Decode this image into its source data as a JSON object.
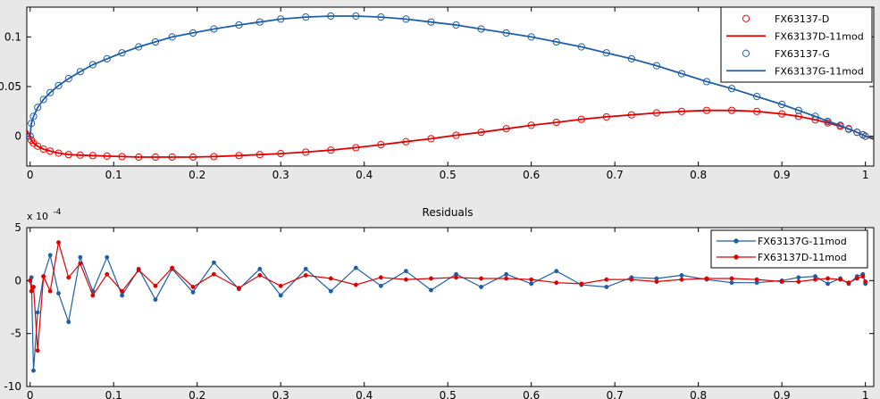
{
  "chart_data": [
    {
      "type": "line",
      "title": "",
      "xlabel": "",
      "ylabel": "",
      "xlim": [
        -0.004,
        1.01
      ],
      "ylim": [
        -0.03,
        0.13
      ],
      "x_ticks": [
        "0",
        "0.1",
        "0.2",
        "0.3",
        "0.4",
        "0.5",
        "0.6",
        "0.7",
        "0.8",
        "0.9",
        "1"
      ],
      "x_tick_values": [
        0,
        0.1,
        0.2,
        0.3,
        0.4,
        0.5,
        0.6,
        0.7,
        0.8,
        0.9,
        1
      ],
      "y_ticks": [
        "0",
        "0.05",
        "0.1"
      ],
      "y_tick_values": [
        0,
        0.05,
        0.1
      ],
      "legend_position": "top-right",
      "series": [
        {
          "name": "FX63137-D",
          "style": "markers",
          "marker": "circle",
          "color": "#ff0000",
          "x": [
            0,
            0.0015,
            0.004,
            0.009,
            0.016,
            0.024,
            0.034,
            0.046,
            0.06,
            0.075,
            0.092,
            0.11,
            0.13,
            0.15,
            0.17,
            0.195,
            0.22,
            0.25,
            0.275,
            0.3,
            0.33,
            0.36,
            0.39,
            0.42,
            0.45,
            0.48,
            0.51,
            0.54,
            0.57,
            0.6,
            0.63,
            0.66,
            0.69,
            0.72,
            0.75,
            0.78,
            0.81,
            0.84,
            0.87,
            0.9,
            0.92,
            0.94,
            0.955,
            0.97,
            0.98,
            0.99,
            0.997,
            1.0
          ],
          "y": [
            0,
            -0.004,
            -0.007,
            -0.01,
            -0.013,
            -0.015,
            -0.017,
            -0.0185,
            -0.019,
            -0.0195,
            -0.02,
            -0.0205,
            -0.021,
            -0.021,
            -0.021,
            -0.021,
            -0.0205,
            -0.0195,
            -0.0185,
            -0.0175,
            -0.016,
            -0.014,
            -0.0115,
            -0.0085,
            -0.0055,
            -0.0025,
            0.001,
            0.004,
            0.0075,
            0.011,
            0.014,
            0.017,
            0.0195,
            0.0215,
            0.0235,
            0.025,
            0.026,
            0.026,
            0.025,
            0.0225,
            0.02,
            0.0165,
            0.0135,
            0.01,
            0.0075,
            0.004,
            0.0015,
            0
          ]
        },
        {
          "name": "FX63137D-11mod",
          "style": "line",
          "color": "#e00000",
          "x": [
            -0.004,
            0,
            0.0015,
            0.004,
            0.009,
            0.016,
            0.024,
            0.034,
            0.046,
            0.06,
            0.075,
            0.092,
            0.11,
            0.13,
            0.15,
            0.17,
            0.195,
            0.22,
            0.25,
            0.275,
            0.3,
            0.33,
            0.36,
            0.39,
            0.42,
            0.45,
            0.48,
            0.51,
            0.54,
            0.57,
            0.6,
            0.63,
            0.66,
            0.69,
            0.72,
            0.75,
            0.78,
            0.81,
            0.84,
            0.87,
            0.9,
            0.92,
            0.94,
            0.955,
            0.97,
            0.98,
            0.99,
            0.997,
            1.0,
            1.01
          ],
          "y": [
            0.006,
            0,
            -0.004,
            -0.007,
            -0.01,
            -0.013,
            -0.015,
            -0.017,
            -0.0185,
            -0.019,
            -0.0195,
            -0.02,
            -0.0205,
            -0.021,
            -0.021,
            -0.021,
            -0.021,
            -0.0205,
            -0.0195,
            -0.0185,
            -0.0175,
            -0.016,
            -0.014,
            -0.0115,
            -0.0085,
            -0.0055,
            -0.0025,
            0.001,
            0.004,
            0.0075,
            0.011,
            0.014,
            0.017,
            0.0195,
            0.0215,
            0.0235,
            0.025,
            0.026,
            0.026,
            0.025,
            0.0225,
            0.02,
            0.0165,
            0.0135,
            0.01,
            0.0075,
            0.004,
            0.0015,
            0,
            -0.003
          ]
        },
        {
          "name": "FX63137-G",
          "style": "markers",
          "marker": "circle",
          "color": "#1f5fa8",
          "x": [
            0,
            0.0015,
            0.004,
            0.009,
            0.016,
            0.024,
            0.034,
            0.046,
            0.06,
            0.075,
            0.092,
            0.11,
            0.13,
            0.15,
            0.17,
            0.195,
            0.22,
            0.25,
            0.275,
            0.3,
            0.33,
            0.36,
            0.39,
            0.42,
            0.45,
            0.48,
            0.51,
            0.54,
            0.57,
            0.6,
            0.63,
            0.66,
            0.69,
            0.72,
            0.75,
            0.78,
            0.81,
            0.84,
            0.87,
            0.9,
            0.92,
            0.94,
            0.955,
            0.97,
            0.98,
            0.99,
            0.997,
            1.0
          ],
          "y": [
            0,
            0.013,
            0.02,
            0.029,
            0.037,
            0.044,
            0.051,
            0.058,
            0.065,
            0.072,
            0.078,
            0.084,
            0.09,
            0.095,
            0.1,
            0.104,
            0.108,
            0.112,
            0.115,
            0.118,
            0.12,
            0.121,
            0.121,
            0.12,
            0.118,
            0.115,
            0.112,
            0.108,
            0.104,
            0.1,
            0.095,
            0.09,
            0.084,
            0.078,
            0.071,
            0.063,
            0.055,
            0.048,
            0.04,
            0.032,
            0.026,
            0.02,
            0.015,
            0.011,
            0.007,
            0.004,
            0.0015,
            0
          ]
        },
        {
          "name": "FX63137G-11mod",
          "style": "line",
          "color": "#1f5fa8",
          "x": [
            0,
            0.0015,
            0.004,
            0.009,
            0.016,
            0.024,
            0.034,
            0.046,
            0.06,
            0.075,
            0.092,
            0.11,
            0.13,
            0.15,
            0.17,
            0.195,
            0.22,
            0.25,
            0.275,
            0.3,
            0.33,
            0.36,
            0.39,
            0.42,
            0.45,
            0.48,
            0.51,
            0.54,
            0.57,
            0.6,
            0.63,
            0.66,
            0.69,
            0.72,
            0.75,
            0.78,
            0.81,
            0.84,
            0.87,
            0.9,
            0.92,
            0.94,
            0.955,
            0.97,
            0.98,
            0.99,
            0.997,
            1.0,
            1.01
          ],
          "y": [
            0,
            0.013,
            0.02,
            0.029,
            0.037,
            0.044,
            0.051,
            0.058,
            0.065,
            0.072,
            0.078,
            0.084,
            0.09,
            0.095,
            0.1,
            0.104,
            0.108,
            0.112,
            0.115,
            0.118,
            0.12,
            0.121,
            0.121,
            0.12,
            0.118,
            0.115,
            0.112,
            0.108,
            0.104,
            0.1,
            0.095,
            0.09,
            0.084,
            0.078,
            0.071,
            0.063,
            0.055,
            0.048,
            0.04,
            0.032,
            0.026,
            0.02,
            0.015,
            0.011,
            0.007,
            0.004,
            0.0015,
            0,
            -0.002
          ]
        }
      ]
    },
    {
      "type": "line",
      "title": "Residuals",
      "xlabel": "",
      "ylabel": "",
      "exponent_label": "x 10",
      "exponent_power": "-4",
      "xlim": [
        -0.004,
        1.01
      ],
      "ylim": [
        -10,
        5
      ],
      "x_ticks": [
        "0",
        "0.1",
        "0.2",
        "0.3",
        "0.4",
        "0.5",
        "0.6",
        "0.7",
        "0.8",
        "0.9",
        "1"
      ],
      "x_tick_values": [
        0,
        0.1,
        0.2,
        0.3,
        0.4,
        0.5,
        0.6,
        0.7,
        0.8,
        0.9,
        1
      ],
      "y_ticks": [
        "-10",
        "-5",
        "0",
        "5"
      ],
      "y_tick_values": [
        -10,
        -5,
        0,
        5
      ],
      "legend_position": "top-right",
      "series": [
        {
          "name": "FX63137G-11mod",
          "color": "#1f5fa8",
          "x": [
            0,
            0.0015,
            0.004,
            0.009,
            0.016,
            0.024,
            0.034,
            0.046,
            0.06,
            0.075,
            0.092,
            0.11,
            0.13,
            0.15,
            0.17,
            0.195,
            0.22,
            0.25,
            0.275,
            0.3,
            0.33,
            0.36,
            0.39,
            0.42,
            0.45,
            0.48,
            0.51,
            0.54,
            0.57,
            0.6,
            0.63,
            0.66,
            0.69,
            0.72,
            0.75,
            0.78,
            0.81,
            0.84,
            0.87,
            0.9,
            0.92,
            0.94,
            0.955,
            0.97,
            0.98,
            0.99,
            0.997,
            1.0
          ],
          "y": [
            0,
            0.3,
            -8.5,
            -3,
            0.4,
            2.4,
            -1.2,
            -3.9,
            2.2,
            -1,
            2.2,
            -1.4,
            1.1,
            -1.8,
            1.1,
            -1.1,
            1.7,
            -0.8,
            1.1,
            -1.4,
            1.1,
            -1.0,
            1.2,
            -0.5,
            0.9,
            -0.9,
            0.6,
            -0.6,
            0.6,
            -0.3,
            0.9,
            -0.4,
            -0.6,
            0.3,
            0.2,
            0.5,
            0.1,
            -0.2,
            -0.2,
            0.0,
            0.3,
            0.4,
            -0.3,
            0.2,
            -0.3,
            0.4,
            0.6,
            -0.3
          ]
        },
        {
          "name": "FX63137D-11mod",
          "color": "#e00000",
          "x": [
            0,
            0.0015,
            0.004,
            0.009,
            0.016,
            0.024,
            0.034,
            0.046,
            0.06,
            0.075,
            0.092,
            0.11,
            0.13,
            0.15,
            0.17,
            0.195,
            0.22,
            0.25,
            0.275,
            0.3,
            0.33,
            0.36,
            0.39,
            0.42,
            0.45,
            0.48,
            0.51,
            0.54,
            0.57,
            0.6,
            0.63,
            0.66,
            0.69,
            0.72,
            0.75,
            0.78,
            0.81,
            0.84,
            0.87,
            0.9,
            0.92,
            0.94,
            0.955,
            0.97,
            0.98,
            0.99,
            0.997,
            1.0
          ],
          "y": [
            0,
            -1,
            -0.6,
            -6.6,
            0.4,
            -1.0,
            3.6,
            0.3,
            1.6,
            -1.4,
            0.6,
            -1.0,
            1.0,
            -0.5,
            1.2,
            -0.6,
            0.6,
            -0.7,
            0.5,
            -0.5,
            0.5,
            0.2,
            -0.4,
            0.3,
            0.1,
            0.2,
            0.3,
            0.2,
            0.2,
            0.1,
            -0.2,
            -0.3,
            0.1,
            0.1,
            -0.1,
            0.1,
            0.2,
            0.2,
            0.1,
            -0.1,
            -0.1,
            0.1,
            0.2,
            0.1,
            -0.2,
            0.2,
            0.4,
            -0.1
          ]
        }
      ]
    }
  ]
}
